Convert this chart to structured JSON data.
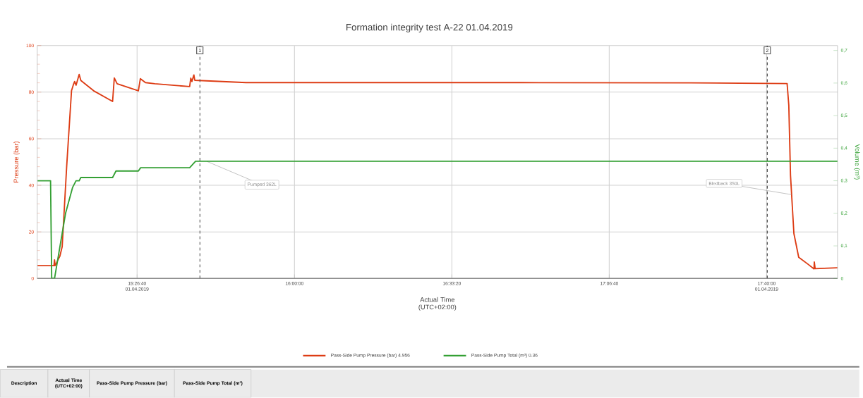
{
  "chart_data": {
    "type": "line",
    "title": "Formation integrity test A-22 01.04.2019",
    "xlabel": "Actual Time (UTC+02:00)",
    "ylabel": "Pressure (bar)",
    "y2label": "Volume (m³)",
    "xlim": [
      15.092,
      17.917
    ],
    "xticks": [
      {
        "value": 15.4444,
        "label": "15:26:40 01.04.2019"
      },
      {
        "value": 16.0,
        "label": "16:00:00"
      },
      {
        "value": 16.5556,
        "label": "16:33:20"
      },
      {
        "value": 17.1111,
        "label": "17:06:40"
      },
      {
        "value": 17.6667,
        "label": "17:40:00 01.04.2019"
      }
    ],
    "ylim": [
      0,
      100
    ],
    "yticks": [
      0,
      20,
      40,
      60,
      80,
      100
    ],
    "y2lim": [
      0,
      0.715
    ],
    "y2ticks": [
      0,
      {
        "value": 0.1,
        "label": "0,1"
      },
      {
        "value": 0.2,
        "label": "0,2"
      },
      {
        "value": 0.3,
        "label": "0,3"
      },
      {
        "value": 0.4,
        "label": "0,4"
      },
      {
        "value": 0.5,
        "label": "0,5"
      },
      {
        "value": 0.6,
        "label": "0,6"
      },
      {
        "value": 0.7,
        "label": "0,7"
      }
    ],
    "grid": true,
    "legend": "bottom",
    "series": [
      {
        "name": "Pass-Side Pump Pressure (bar) 4.956",
        "color": "#dd3c14",
        "axis": "y",
        "x": [
          15.0931,
          15.151,
          15.153,
          15.155,
          15.172,
          15.18,
          15.196,
          15.213,
          15.219,
          15.224,
          15.229,
          15.24,
          15.246,
          15.291,
          15.358,
          15.364,
          15.374,
          15.449,
          15.456,
          15.474,
          15.507,
          15.63,
          15.634,
          15.638,
          15.645,
          15.648,
          15.829,
          16.2,
          16.8,
          17.4,
          17.739,
          17.745,
          17.751,
          17.763,
          17.78,
          17.813,
          17.834,
          17.835,
          17.838,
          17.917
        ],
        "values": [
          5.5,
          5.5,
          8,
          5.5,
          9.6,
          13.6,
          48.3,
          80.6,
          83,
          84.6,
          83,
          87.6,
          85,
          80.6,
          76,
          86.1,
          83.6,
          80.6,
          85.8,
          84.1,
          83.6,
          82.4,
          86,
          84.6,
          87.4,
          85.1,
          84.1,
          84.1,
          84.1,
          84,
          83.7,
          74.4,
          44.3,
          19.3,
          9.1,
          6.1,
          4.1,
          7.1,
          4.2,
          4.6
        ]
      },
      {
        "name": "Pass-Side Pump Total (m³) 0.36",
        "color": "#34a034",
        "axis": "y2",
        "x": [
          15.0931,
          15.139,
          15.143,
          15.153,
          15.192,
          15.217,
          15.229,
          15.24,
          15.246,
          15.358,
          15.37,
          15.449,
          15.457,
          15.63,
          15.651,
          17.917
        ],
        "values": [
          0.3,
          0.3,
          0,
          0,
          0.2,
          0.28,
          0.3,
          0.3,
          0.31,
          0.31,
          0.33,
          0.33,
          0.34,
          0.34,
          0.36,
          0.36
        ]
      }
    ],
    "ref_lines": [
      {
        "axis": "x",
        "value": 15.666,
        "line_style": "dashed",
        "color": "#505050"
      },
      {
        "axis": "x",
        "value": 17.669,
        "line_style": "dashed",
        "color": "#505050"
      }
    ],
    "annotations": [
      {
        "text": "Pumped 362L",
        "x": 15.69,
        "y": 50.3
      },
      {
        "text": "Bledback 350L",
        "x": 17.755,
        "y": 36
      },
      {
        "text": "1",
        "x": 15.666
      },
      {
        "text": "2",
        "x": 17.669
      },
      "Description",
      "Actual Time (UTC+02:00)",
      "Pass-Side Pump Pressure (bar)",
      "Pass-Side Pump Total (m³)"
    ]
  }
}
